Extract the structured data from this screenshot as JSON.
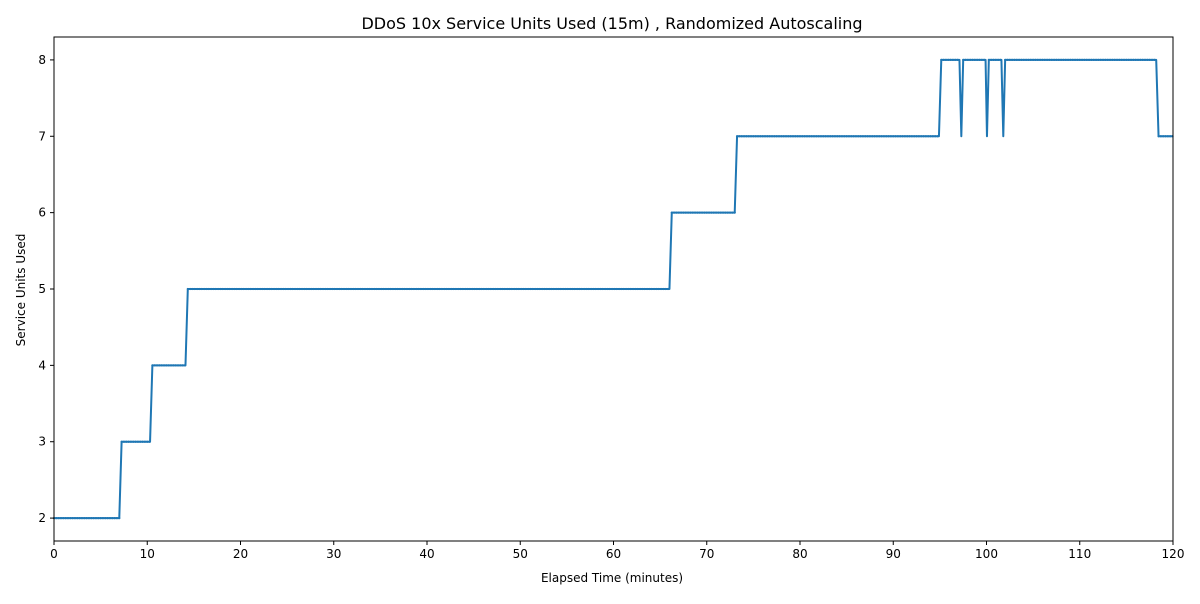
{
  "colors": {
    "series": "#1f77b4",
    "axis": "#000000",
    "background": "#ffffff"
  },
  "chart_data": {
    "type": "line",
    "title": "DDoS 10x Service Units Used (15m) , Randomized Autoscaling",
    "xlabel": "Elapsed Time (minutes)",
    "ylabel": "Service Units Used",
    "xlim": [
      0,
      120
    ],
    "ylim": [
      1.7,
      8.3
    ],
    "xticks": [
      0,
      10,
      20,
      30,
      40,
      50,
      60,
      70,
      80,
      90,
      100,
      110,
      120
    ],
    "yticks": [
      2,
      3,
      4,
      5,
      6,
      7,
      8
    ],
    "grid": false,
    "legend": "none",
    "series": [
      {
        "color": "#1f77b4",
        "marker": "small-dot",
        "x": [
          0,
          7.0,
          7.25,
          10.3,
          10.55,
          14.1,
          14.35,
          66.0,
          66.25,
          73.0,
          73.25,
          94.9,
          95.15,
          97.1,
          97.3,
          97.5,
          99.9,
          100.05,
          100.25,
          101.6,
          101.8,
          102.0,
          118.2,
          118.45,
          120
        ],
        "y": [
          2,
          2,
          3,
          3,
          4,
          4,
          5,
          5,
          6,
          6,
          7,
          7,
          8,
          8,
          7,
          8,
          8,
          7,
          8,
          8,
          7,
          8,
          8,
          7,
          7
        ]
      }
    ]
  }
}
